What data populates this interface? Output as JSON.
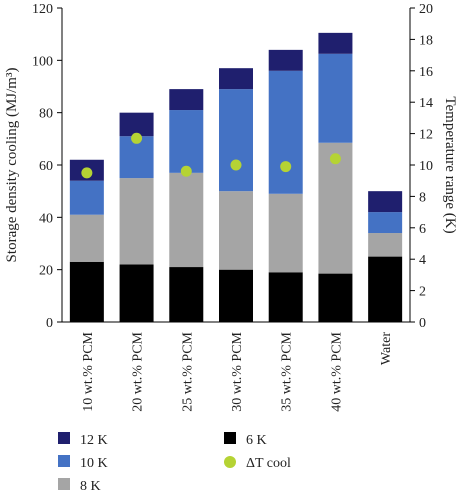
{
  "chart_data": {
    "type": "bar",
    "stacked": true,
    "categories": [
      "10 wt.% PCM",
      "20 wt.% PCM",
      "25 wt.% PCM",
      "30 wt.% PCM",
      "35 wt.% PCM",
      "40 wt.% PCM",
      "Water"
    ],
    "series": [
      {
        "name": "6 K",
        "color": "#000000",
        "values": [
          23,
          22,
          21,
          20,
          19,
          18.5,
          25
        ]
      },
      {
        "name": "8 K",
        "color": "#a5a5a5",
        "values": [
          18,
          33,
          36,
          30,
          30,
          50,
          9
        ]
      },
      {
        "name": "10 K",
        "color": "#4472c4",
        "values": [
          13,
          16,
          24,
          39,
          47,
          34,
          8
        ]
      },
      {
        "name": "12 K",
        "color": "#1f1f6e",
        "values": [
          8,
          9,
          8,
          8,
          8,
          8,
          8
        ]
      }
    ],
    "overlay": {
      "name": "ΔT cool",
      "axis": "right",
      "color": "#b5d334",
      "values": [
        9.5,
        11.7,
        9.6,
        10.0,
        9.9,
        10.4,
        null
      ]
    },
    "ylabel": "Storage density cooling (MJ/m³)",
    "y2label": "Temperature range (K)",
    "ylim": [
      0,
      120
    ],
    "y2lim": [
      0,
      20
    ],
    "yticks": [
      "0",
      "20",
      "40",
      "60",
      "80",
      "100",
      "120"
    ],
    "y2ticks": [
      "0",
      "2",
      "4",
      "6",
      "8",
      "10",
      "12",
      "14",
      "16",
      "18",
      "20"
    ],
    "legend": {
      "position": "bottom",
      "order": [
        "12 K",
        "6 K",
        "10 K",
        "ΔT cool",
        "8 K"
      ]
    },
    "grid": false
  }
}
